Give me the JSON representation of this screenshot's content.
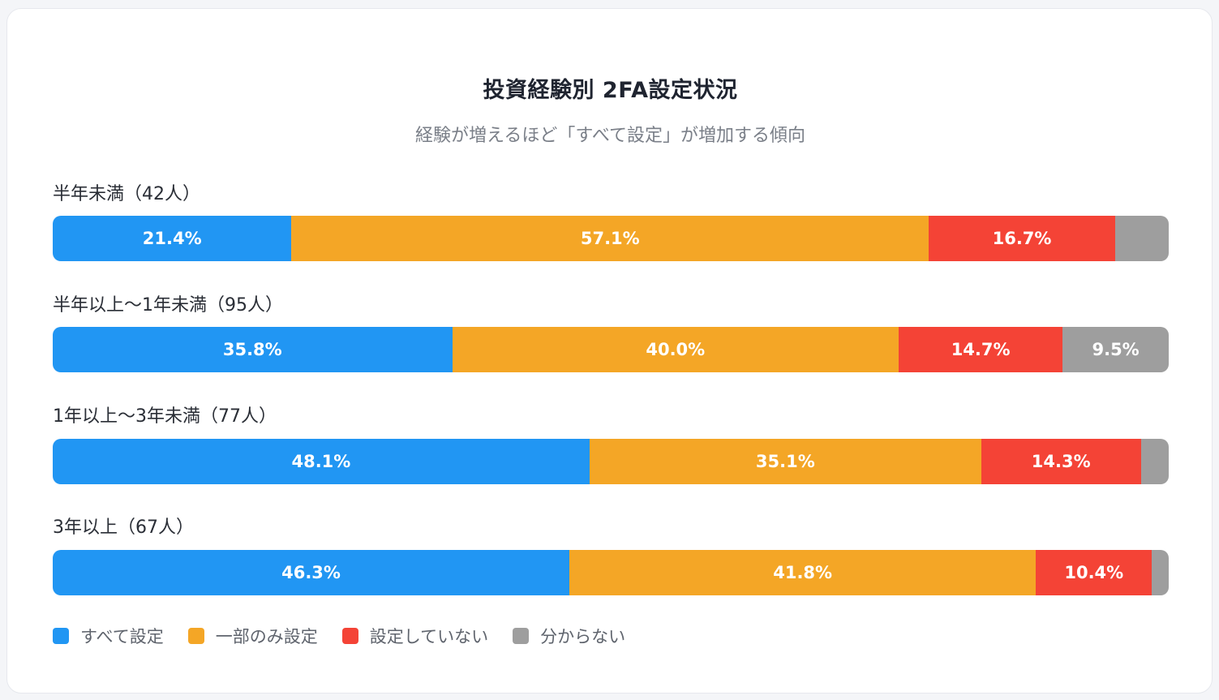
{
  "chart_data": {
    "type": "bar",
    "orientation": "horizontal",
    "stacked": true,
    "title": "投資経験別 2FA設定状況",
    "subtitle": "経験が増えるほど「すべて設定」が増加する傾向",
    "groups": [
      {
        "label": "半年未満（42人）",
        "values": [
          21.4,
          57.1,
          16.7,
          4.8
        ],
        "labels": [
          "21.4%",
          "57.1%",
          "16.7%",
          ""
        ]
      },
      {
        "label": "半年以上〜1年未満（95人）",
        "values": [
          35.8,
          40.0,
          14.7,
          9.5
        ],
        "labels": [
          "35.8%",
          "40.0%",
          "14.7%",
          "9.5%"
        ]
      },
      {
        "label": "1年以上〜3年未満（77人）",
        "values": [
          48.1,
          35.1,
          14.3,
          2.5
        ],
        "labels": [
          "48.1%",
          "35.1%",
          "14.3%",
          ""
        ]
      },
      {
        "label": "3年以上（67人）",
        "values": [
          46.3,
          41.8,
          10.4,
          1.5
        ],
        "labels": [
          "46.3%",
          "41.8%",
          "10.4%",
          ""
        ]
      }
    ],
    "series": [
      {
        "name": "すべて設定",
        "color": "#2196f3"
      },
      {
        "name": "一部のみ設定",
        "color": "#f4a626"
      },
      {
        "name": "設定していない",
        "color": "#f44336"
      },
      {
        "name": "分からない",
        "color": "#9e9e9e"
      }
    ],
    "legend": "bottom-left",
    "xlim": [
      0,
      100
    ]
  }
}
